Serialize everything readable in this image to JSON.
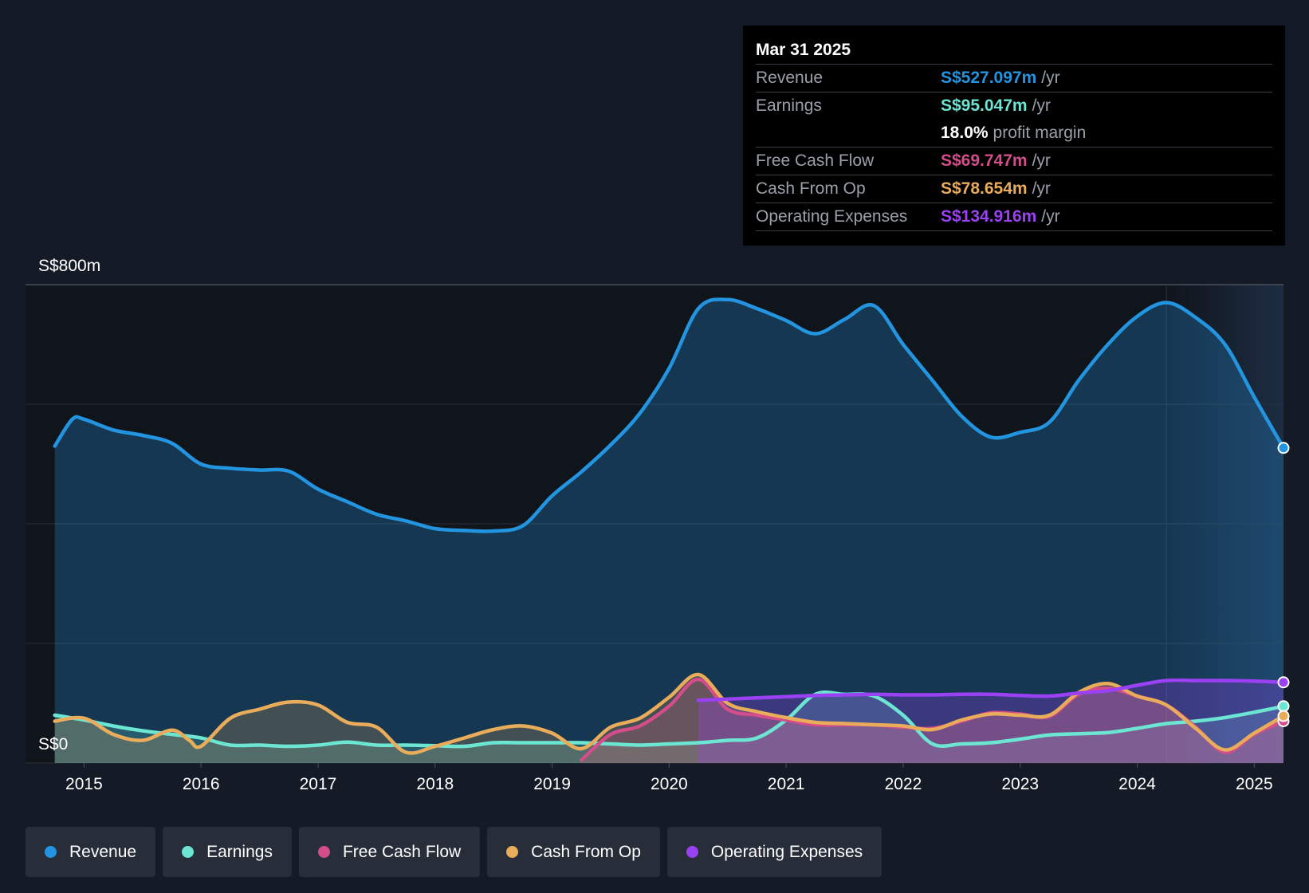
{
  "tooltip": {
    "date": "Mar 31 2025",
    "rows": [
      {
        "label": "Revenue",
        "value": "S$527.097m",
        "unit": "/yr",
        "color": "#2394df"
      },
      {
        "label": "Earnings",
        "value": "S$95.047m",
        "unit": "/yr",
        "color": "#6ce5d2"
      },
      {
        "label": "",
        "value": "18.0%",
        "unit": "profit margin",
        "color": "#ffffff"
      },
      {
        "label": "Free Cash Flow",
        "value": "S$69.747m",
        "unit": "/yr",
        "color": "#d24d89"
      },
      {
        "label": "Cash From Op",
        "value": "S$78.654m",
        "unit": "/yr",
        "color": "#e9ac5b"
      },
      {
        "label": "Operating Expenses",
        "value": "S$134.916m",
        "unit": "/yr",
        "color": "#9a41f3"
      }
    ]
  },
  "legend": [
    {
      "label": "Revenue",
      "color": "#2394df"
    },
    {
      "label": "Earnings",
      "color": "#6ce5d2"
    },
    {
      "label": "Free Cash Flow",
      "color": "#d24d89"
    },
    {
      "label": "Cash From Op",
      "color": "#e9ac5b"
    },
    {
      "label": "Operating Expenses",
      "color": "#9a41f3"
    }
  ],
  "chart_data": {
    "type": "area",
    "y_top_label": "S$800m",
    "y_bottom_label": "S$0",
    "ylim": [
      0,
      800
    ],
    "xlim": [
      2014.5,
      2025.25
    ],
    "x_ticks": [
      2015,
      2016,
      2017,
      2018,
      2019,
      2020,
      2021,
      2022,
      2023,
      2024,
      2025
    ],
    "x_tick_labels": [
      "2015",
      "2016",
      "2017",
      "2018",
      "2019",
      "2020",
      "2021",
      "2022",
      "2023",
      "2024",
      "2025"
    ],
    "forecast_start": 2024.25,
    "series": [
      {
        "name": "Revenue",
        "color": "#2394df",
        "points": [
          [
            2014.75,
            530
          ],
          [
            2014.9,
            575
          ],
          [
            2015.0,
            575
          ],
          [
            2015.25,
            557
          ],
          [
            2015.5,
            548
          ],
          [
            2015.75,
            535
          ],
          [
            2016.0,
            500
          ],
          [
            2016.25,
            493
          ],
          [
            2016.5,
            490
          ],
          [
            2016.75,
            488
          ],
          [
            2017.0,
            458
          ],
          [
            2017.25,
            437
          ],
          [
            2017.5,
            416
          ],
          [
            2017.75,
            405
          ],
          [
            2018.0,
            392
          ],
          [
            2018.25,
            389
          ],
          [
            2018.5,
            388
          ],
          [
            2018.75,
            397
          ],
          [
            2019.0,
            447
          ],
          [
            2019.25,
            487
          ],
          [
            2019.5,
            532
          ],
          [
            2019.75,
            585
          ],
          [
            2020.0,
            660
          ],
          [
            2020.25,
            760
          ],
          [
            2020.5,
            775
          ],
          [
            2020.75,
            760
          ],
          [
            2021.0,
            740
          ],
          [
            2021.25,
            718
          ],
          [
            2021.5,
            742
          ],
          [
            2021.75,
            765
          ],
          [
            2022.0,
            700
          ],
          [
            2022.25,
            640
          ],
          [
            2022.5,
            580
          ],
          [
            2022.75,
            545
          ],
          [
            2023.0,
            553
          ],
          [
            2023.25,
            570
          ],
          [
            2023.5,
            640
          ],
          [
            2023.75,
            700
          ],
          [
            2024.0,
            747
          ],
          [
            2024.25,
            770
          ],
          [
            2024.5,
            745
          ],
          [
            2024.75,
            700
          ],
          [
            2025.0,
            612
          ],
          [
            2025.25,
            527
          ]
        ]
      },
      {
        "name": "Earnings",
        "color": "#6ce5d2",
        "points": [
          [
            2014.75,
            80
          ],
          [
            2015.0,
            72
          ],
          [
            2015.25,
            62
          ],
          [
            2015.5,
            54
          ],
          [
            2015.75,
            48
          ],
          [
            2016.0,
            42
          ],
          [
            2016.25,
            30
          ],
          [
            2016.5,
            30
          ],
          [
            2016.75,
            28
          ],
          [
            2017.0,
            30
          ],
          [
            2017.25,
            35
          ],
          [
            2017.5,
            30
          ],
          [
            2017.75,
            30
          ],
          [
            2018.0,
            29
          ],
          [
            2018.25,
            28
          ],
          [
            2018.5,
            34
          ],
          [
            2018.75,
            34
          ],
          [
            2019.0,
            34
          ],
          [
            2019.25,
            34
          ],
          [
            2019.5,
            32
          ],
          [
            2019.75,
            30
          ],
          [
            2020.0,
            32
          ],
          [
            2020.25,
            34
          ],
          [
            2020.5,
            38
          ],
          [
            2020.75,
            42
          ],
          [
            2021.0,
            72
          ],
          [
            2021.25,
            115
          ],
          [
            2021.5,
            115
          ],
          [
            2021.75,
            112
          ],
          [
            2022.0,
            80
          ],
          [
            2022.25,
            32
          ],
          [
            2022.5,
            32
          ],
          [
            2022.75,
            34
          ],
          [
            2023.0,
            40
          ],
          [
            2023.25,
            47
          ],
          [
            2023.5,
            49
          ],
          [
            2023.75,
            51
          ],
          [
            2024.0,
            58
          ],
          [
            2024.25,
            66
          ],
          [
            2024.5,
            70
          ],
          [
            2024.75,
            76
          ],
          [
            2025.0,
            85
          ],
          [
            2025.25,
            95
          ]
        ]
      },
      {
        "name": "Free Cash Flow",
        "color": "#d24d89",
        "points": [
          [
            2019.25,
            5
          ],
          [
            2019.5,
            48
          ],
          [
            2019.75,
            62
          ],
          [
            2020.0,
            95
          ],
          [
            2020.25,
            140
          ],
          [
            2020.5,
            90
          ],
          [
            2020.75,
            80
          ],
          [
            2021.0,
            72
          ],
          [
            2021.25,
            64
          ],
          [
            2021.5,
            64
          ],
          [
            2021.75,
            64
          ],
          [
            2022.0,
            60
          ],
          [
            2022.25,
            58
          ],
          [
            2022.5,
            70
          ],
          [
            2022.75,
            84
          ],
          [
            2023.0,
            82
          ],
          [
            2023.25,
            78
          ],
          [
            2023.5,
            115
          ],
          [
            2023.75,
            125
          ],
          [
            2024.0,
            112
          ],
          [
            2024.25,
            97
          ],
          [
            2024.5,
            60
          ],
          [
            2024.75,
            18
          ],
          [
            2025.0,
            48
          ],
          [
            2025.25,
            70
          ]
        ]
      },
      {
        "name": "Cash From Op",
        "color": "#e9ac5b",
        "points": [
          [
            2014.75,
            70
          ],
          [
            2015.0,
            75
          ],
          [
            2015.25,
            48
          ],
          [
            2015.5,
            38
          ],
          [
            2015.75,
            55
          ],
          [
            2015.9,
            38
          ],
          [
            2016.0,
            28
          ],
          [
            2016.25,
            75
          ],
          [
            2016.5,
            90
          ],
          [
            2016.75,
            102
          ],
          [
            2017.0,
            97
          ],
          [
            2017.25,
            68
          ],
          [
            2017.5,
            60
          ],
          [
            2017.75,
            18
          ],
          [
            2018.0,
            28
          ],
          [
            2018.25,
            42
          ],
          [
            2018.5,
            56
          ],
          [
            2018.75,
            62
          ],
          [
            2019.0,
            50
          ],
          [
            2019.25,
            24
          ],
          [
            2019.5,
            60
          ],
          [
            2019.75,
            75
          ],
          [
            2020.0,
            110
          ],
          [
            2020.25,
            148
          ],
          [
            2020.5,
            100
          ],
          [
            2020.75,
            86
          ],
          [
            2021.0,
            76
          ],
          [
            2021.25,
            68
          ],
          [
            2021.5,
            66
          ],
          [
            2021.75,
            64
          ],
          [
            2022.0,
            62
          ],
          [
            2022.25,
            56
          ],
          [
            2022.5,
            72
          ],
          [
            2022.75,
            82
          ],
          [
            2023.0,
            80
          ],
          [
            2023.25,
            80
          ],
          [
            2023.5,
            118
          ],
          [
            2023.75,
            133
          ],
          [
            2024.0,
            112
          ],
          [
            2024.25,
            97
          ],
          [
            2024.5,
            58
          ],
          [
            2024.75,
            22
          ],
          [
            2025.0,
            50
          ],
          [
            2025.25,
            78.654
          ]
        ]
      },
      {
        "name": "Operating Expenses",
        "color": "#9a41f3",
        "points": [
          [
            2020.25,
            105
          ],
          [
            2020.5,
            107
          ],
          [
            2020.75,
            109
          ],
          [
            2021.0,
            111
          ],
          [
            2021.25,
            113
          ],
          [
            2021.5,
            114
          ],
          [
            2021.75,
            115
          ],
          [
            2022.0,
            114
          ],
          [
            2022.25,
            114
          ],
          [
            2022.5,
            115
          ],
          [
            2022.75,
            115
          ],
          [
            2023.0,
            113
          ],
          [
            2023.25,
            112
          ],
          [
            2023.5,
            117
          ],
          [
            2023.75,
            121
          ],
          [
            2024.0,
            130
          ],
          [
            2024.25,
            138
          ],
          [
            2024.5,
            138
          ],
          [
            2024.75,
            138
          ],
          [
            2025.0,
            137
          ],
          [
            2025.25,
            135
          ]
        ]
      }
    ]
  }
}
